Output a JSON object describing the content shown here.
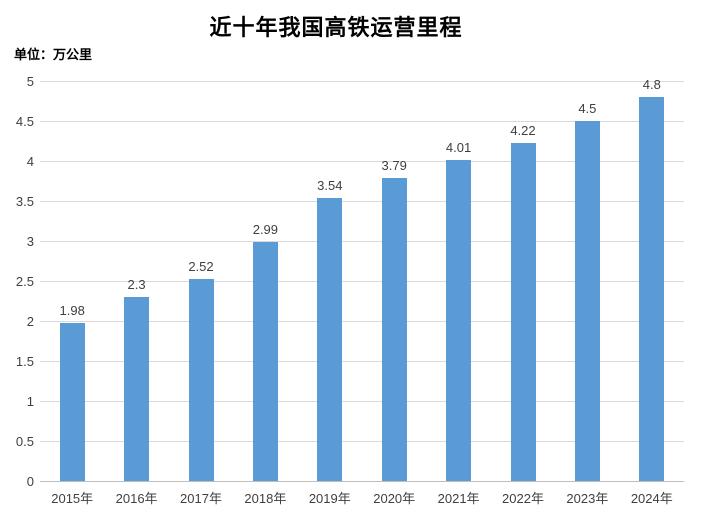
{
  "chart_data": {
    "type": "bar",
    "title": "近十年我国高铁运营里程",
    "unit_label": "单位：万公里",
    "categories": [
      "2015年",
      "2016年",
      "2017年",
      "2018年",
      "2019年",
      "2020年",
      "2021年",
      "2022年",
      "2023年",
      "2024年"
    ],
    "values": [
      1.98,
      2.3,
      2.52,
      2.99,
      3.54,
      3.79,
      4.01,
      4.22,
      4.5,
      4.8
    ],
    "data_labels": [
      "1.98",
      "2.3",
      "2.52",
      "2.99",
      "3.54",
      "3.79",
      "4.01",
      "4.22",
      "4.5",
      "4.8"
    ],
    "xlabel": "",
    "ylabel": "",
    "ylim": [
      0,
      5
    ],
    "ytick_step": 0.5,
    "yticks": [
      "0",
      "0.5",
      "1",
      "1.5",
      "2",
      "2.5",
      "3",
      "3.5",
      "4",
      "4.5",
      "5"
    ],
    "grid": true,
    "legend": "none",
    "bar_color": "#5B9BD5",
    "gridline_color": "#D9D9D9",
    "axis_line_color": "#BFBFBF",
    "tick_label_color": "#404040",
    "data_label_color": "#404040",
    "title_color": "#000000",
    "background_color": "#FFFFFF"
  }
}
